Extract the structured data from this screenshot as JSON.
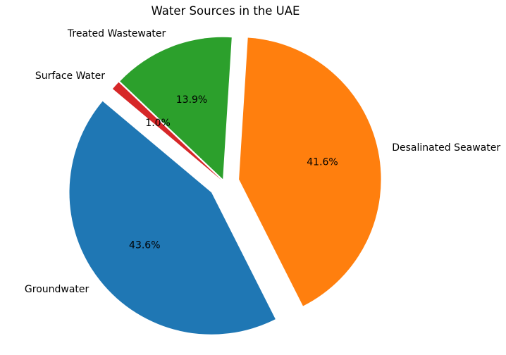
{
  "title": "Water Sources in the UAE",
  "chart_data": {
    "type": "pie",
    "title": "Water Sources in the UAE",
    "labels": [
      "Groundwater",
      "Desalinated Seawater",
      "Treated Wastewater",
      "Surface Water"
    ],
    "values": [
      43.6,
      41.6,
      13.9,
      1.0
    ],
    "pct_labels": [
      "43.6%",
      "41.6%",
      "13.9%",
      "1.0%"
    ],
    "colors": [
      "#1f77b4",
      "#ff7f0e",
      "#2ca02c",
      "#d62728"
    ],
    "explode": [
      0.114,
      0.107,
      0.025,
      0.025
    ],
    "start_angle": 140,
    "counterclock": true,
    "pct_distance": 0.6,
    "label_distance": 1.1,
    "legend": "none",
    "background": "#ffffff",
    "text_color": "#000000"
  }
}
